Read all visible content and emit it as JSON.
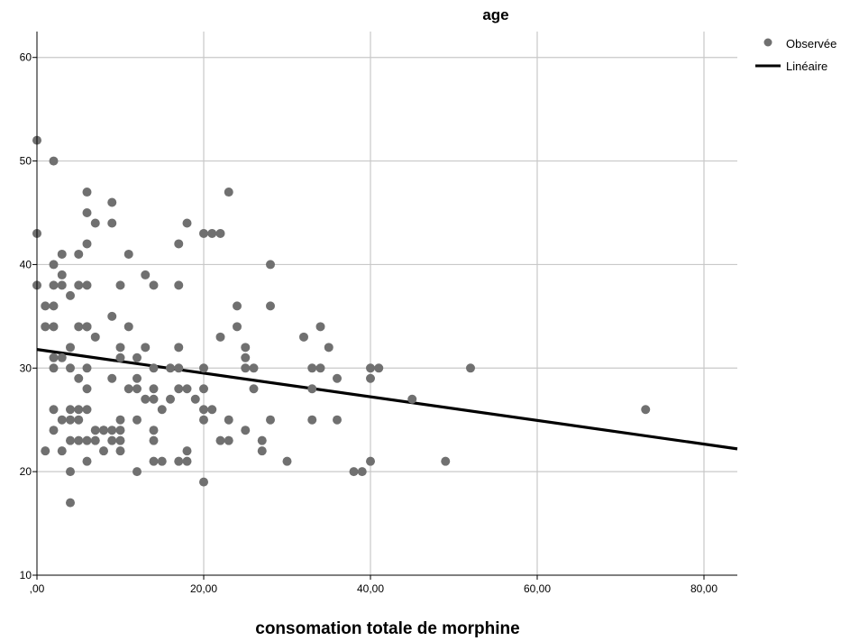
{
  "chart_data": {
    "type": "scatter",
    "title": "age",
    "xlabel": "consomation totale de morphine",
    "ylabel": "",
    "xlim": [
      0,
      84
    ],
    "ylim": [
      10,
      62.5
    ],
    "x_ticks": [
      0,
      20,
      40,
      60,
      80
    ],
    "x_tick_labels": [
      ",00",
      "20,00",
      "40,00",
      "60,00",
      "80,00"
    ],
    "y_ticks": [
      10,
      20,
      30,
      40,
      50,
      60
    ],
    "y_tick_labels": [
      "10",
      "20",
      "30",
      "40",
      "50",
      "60"
    ],
    "grid": true,
    "legend_position": "top-right",
    "colors": {
      "points": "#707070",
      "fit_line": "#000000",
      "grid": "#c8c8c8",
      "axis": "#000000"
    },
    "series": [
      {
        "name": "Observée",
        "kind": "points",
        "x": [
          0,
          0,
          0,
          1,
          1,
          1,
          2,
          2,
          2,
          2,
          2,
          2,
          2,
          2,
          2,
          3,
          3,
          3,
          3,
          3,
          3,
          4,
          4,
          4,
          4,
          4,
          4,
          4,
          4,
          5,
          5,
          5,
          5,
          5,
          5,
          5,
          6,
          6,
          6,
          6,
          6,
          6,
          6,
          6,
          6,
          6,
          6,
          7,
          7,
          7,
          7,
          8,
          8,
          8,
          9,
          9,
          9,
          9,
          9,
          9,
          10,
          10,
          10,
          10,
          10,
          10,
          10,
          11,
          11,
          11,
          12,
          12,
          12,
          12,
          12,
          13,
          13,
          13,
          14,
          14,
          14,
          14,
          14,
          14,
          14,
          15,
          15,
          16,
          16,
          17,
          17,
          17,
          17,
          17,
          17,
          18,
          18,
          18,
          18,
          19,
          20,
          20,
          20,
          20,
          20,
          20,
          21,
          21,
          22,
          22,
          22,
          23,
          23,
          23,
          24,
          24,
          25,
          25,
          25,
          25,
          26,
          26,
          27,
          27,
          28,
          28,
          28,
          30,
          32,
          33,
          33,
          33,
          34,
          34,
          35,
          36,
          36,
          38,
          39,
          40,
          40,
          40,
          41,
          45,
          49,
          52,
          73
        ],
        "y": [
          52,
          43,
          38,
          36,
          34,
          22,
          50,
          40,
          38,
          36,
          34,
          31,
          30,
          26,
          24,
          41,
          39,
          38,
          31,
          25,
          22,
          37,
          32,
          30,
          26,
          25,
          23,
          20,
          17,
          41,
          38,
          34,
          29,
          26,
          25,
          23,
          47,
          45,
          42,
          38,
          34,
          30,
          28,
          26,
          23,
          21,
          34,
          44,
          33,
          24,
          23,
          24,
          22,
          24,
          46,
          44,
          35,
          29,
          24,
          23,
          38,
          32,
          31,
          25,
          24,
          23,
          22,
          41,
          34,
          28,
          31,
          29,
          28,
          25,
          20,
          39,
          32,
          27,
          38,
          30,
          28,
          27,
          24,
          23,
          21,
          26,
          21,
          30,
          27,
          42,
          38,
          32,
          30,
          28,
          21,
          44,
          28,
          22,
          21,
          27,
          43,
          30,
          28,
          26,
          25,
          19,
          43,
          26,
          43,
          33,
          23,
          47,
          25,
          23,
          36,
          34,
          32,
          31,
          30,
          24,
          30,
          28,
          23,
          22,
          40,
          36,
          25,
          21,
          33,
          30,
          28,
          25,
          34,
          30,
          32,
          29,
          25,
          20,
          20,
          30,
          29,
          21,
          30,
          27,
          21,
          30,
          26
        ]
      },
      {
        "name": "Linéaire",
        "kind": "line",
        "x": [
          0,
          84
        ],
        "y": [
          31.8,
          22.2
        ]
      }
    ]
  }
}
